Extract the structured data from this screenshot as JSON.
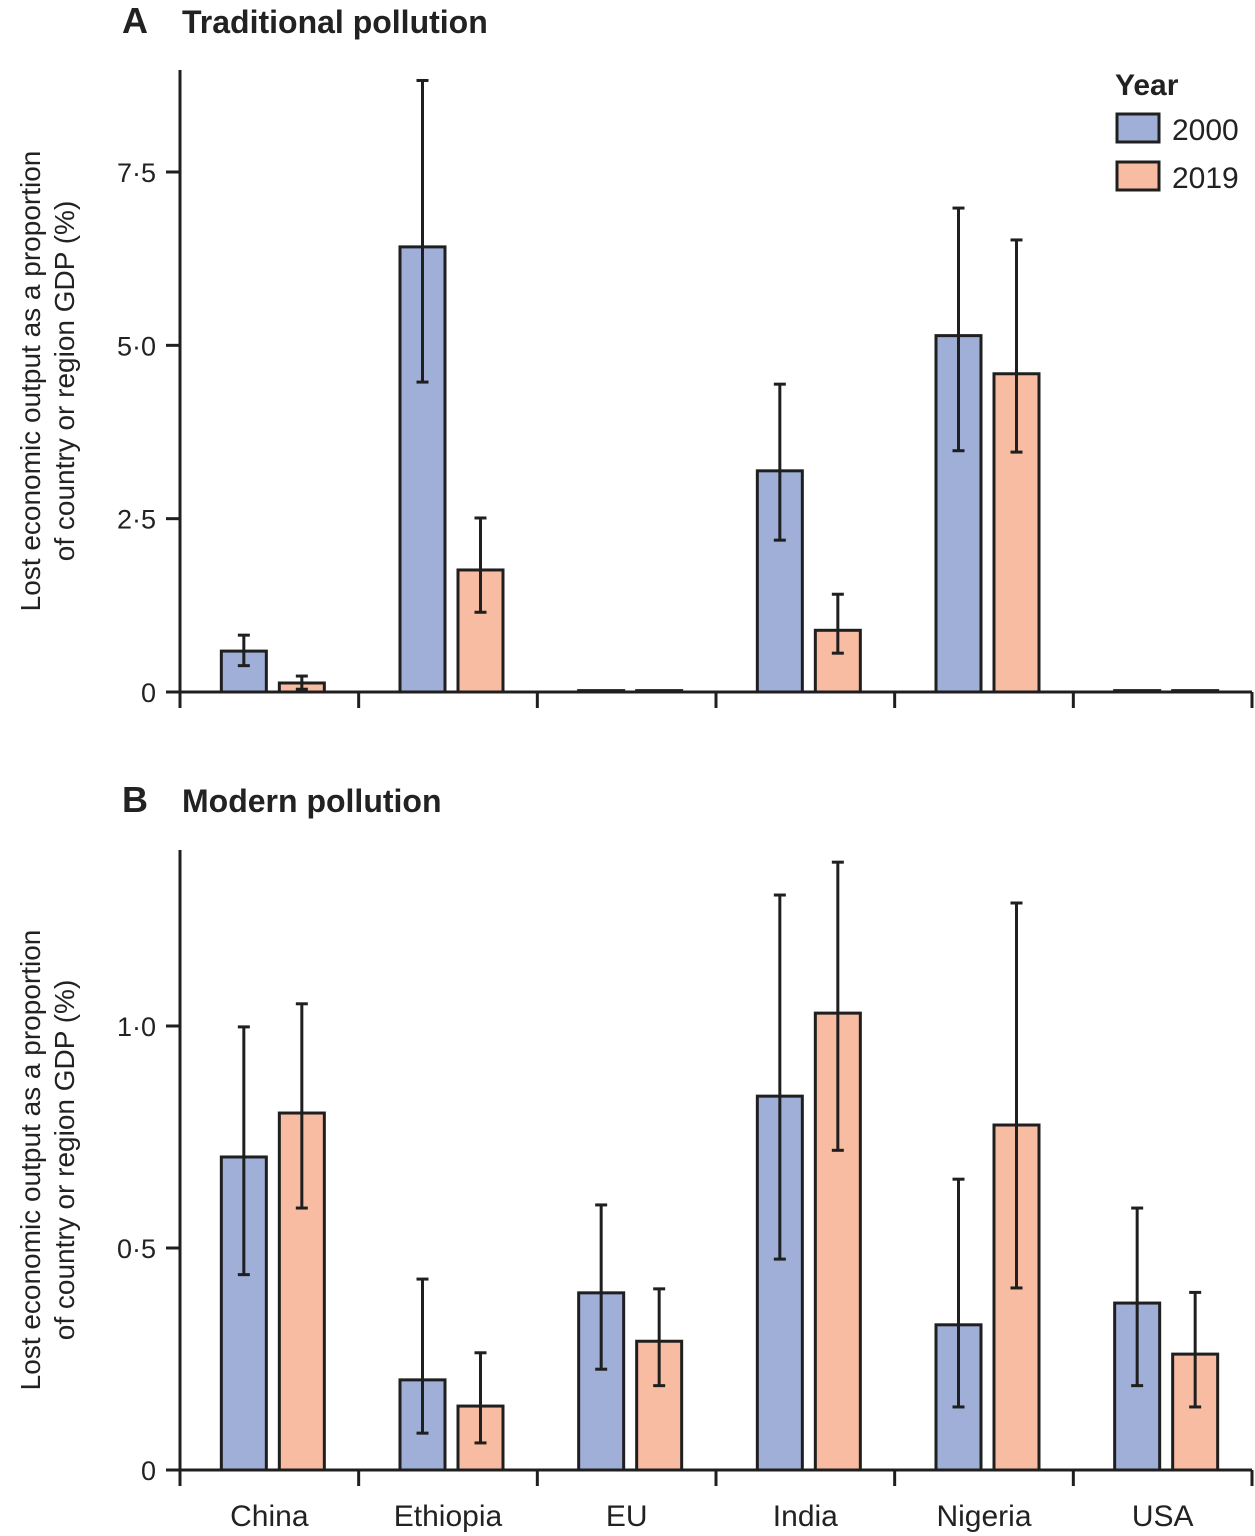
{
  "colors": {
    "2000": "#9fafd8",
    "2019": "#f8bca2",
    "stroke": "#1f1f1f"
  },
  "legend": {
    "title": "Year",
    "items": [
      "2000",
      "2019"
    ],
    "placement": "top-right"
  },
  "chart_data": [
    {
      "type": "bar",
      "panel_label": "A",
      "title": "Traditional pollution",
      "ylabel_line1": "Lost economic output as a proportion",
      "ylabel_line2": "of country or region GDP (%)",
      "categories": [
        "China",
        "Ethiopia",
        "EU",
        "India",
        "Nigeria",
        "USA"
      ],
      "yticks": [
        0,
        2.5,
        5.0,
        7.5
      ],
      "ytick_labels": [
        "0",
        "2·5",
        "5·0",
        "7·5"
      ],
      "ylim": [
        0,
        9
      ],
      "series": [
        {
          "name": "2000",
          "values": [
            0.59,
            6.42,
            0.02,
            3.19,
            5.14,
            0.02
          ],
          "err_low": [
            0.38,
            4.47,
            0.02,
            2.19,
            3.48,
            0.02
          ],
          "err_high": [
            0.82,
            8.82,
            0.02,
            4.44,
            6.98,
            0.02
          ]
        },
        {
          "name": "2019",
          "values": [
            0.13,
            1.76,
            0.02,
            0.89,
            4.59,
            0.02
          ],
          "err_low": [
            0.04,
            1.15,
            0.02,
            0.56,
            3.46,
            0.02
          ],
          "err_high": [
            0.23,
            2.51,
            0.02,
            1.41,
            6.52,
            0.02
          ]
        }
      ]
    },
    {
      "type": "bar",
      "panel_label": "B",
      "title": "Modern pollution",
      "ylabel_line1": "Lost economic output as a proportion",
      "ylabel_line2": "of country or region GDP (%)",
      "categories": [
        "China",
        "Ethiopia",
        "EU",
        "India",
        "Nigeria",
        "USA"
      ],
      "yticks": [
        0,
        0.5,
        1.0
      ],
      "ytick_labels": [
        "0",
        "0·5",
        "1·0"
      ],
      "ylim": [
        0,
        1.4
      ],
      "series": [
        {
          "name": "2000",
          "values": [
            0.705,
            0.203,
            0.399,
            0.842,
            0.327,
            0.376
          ],
          "err_low": [
            0.44,
            0.083,
            0.227,
            0.475,
            0.142,
            0.19
          ],
          "err_high": [
            0.998,
            0.43,
            0.597,
            1.295,
            0.655,
            0.59
          ]
        },
        {
          "name": "2019",
          "values": [
            0.804,
            0.144,
            0.29,
            1.029,
            0.777,
            0.261
          ],
          "err_low": [
            0.59,
            0.061,
            0.19,
            0.72,
            0.41,
            0.142
          ],
          "err_high": [
            1.05,
            0.264,
            0.408,
            1.369,
            1.277,
            0.4
          ]
        }
      ]
    }
  ]
}
